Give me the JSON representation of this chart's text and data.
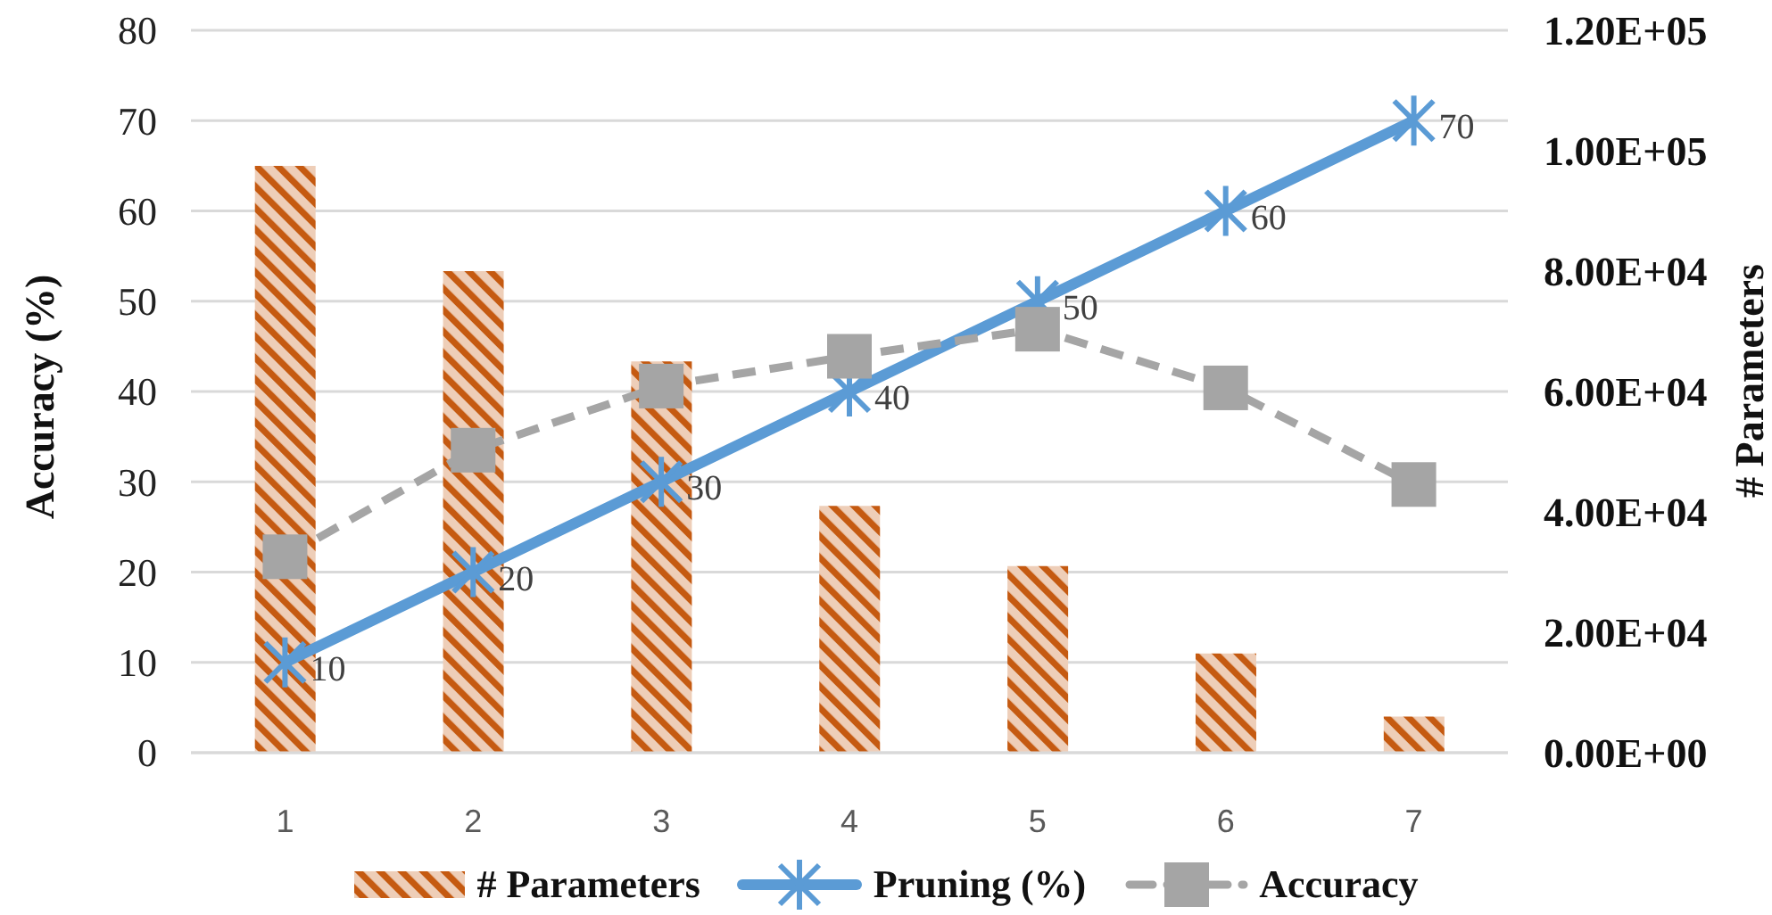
{
  "chart_data": {
    "type": "bar",
    "categories": [
      "1",
      "2",
      "3",
      "4",
      "5",
      "6",
      "7"
    ],
    "ylabel": "Accuracy (%)",
    "y2label": "# Parameters",
    "ylim": [
      0,
      80
    ],
    "yticks": [
      0,
      10,
      20,
      30,
      40,
      50,
      60,
      70,
      80
    ],
    "y2lim": [
      0,
      120000
    ],
    "y2ticks": [
      {
        "value": 0,
        "label": "0.00E+00"
      },
      {
        "value": 20000,
        "label": "2.00E+04"
      },
      {
        "value": 40000,
        "label": "4.00E+04"
      },
      {
        "value": 60000,
        "label": "6.00E+04"
      },
      {
        "value": 80000,
        "label": "8.00E+04"
      },
      {
        "value": 100000,
        "label": "1.00E+05"
      },
      {
        "value": 120000,
        "label": "1.20E+05"
      }
    ],
    "grid": "y",
    "legend": "bottom",
    "series": [
      {
        "name": "# Parameters",
        "axis": "y2",
        "color": "#c55a11",
        "values": [
          97500,
          80000,
          65000,
          41000,
          31000,
          16500,
          6000
        ]
      },
      {
        "name": "Pruning (%)",
        "type": "line",
        "color": "#5b9bd5",
        "marker": "cross",
        "line_style": "solid",
        "values": [
          10,
          20,
          30,
          40,
          50,
          60,
          70
        ],
        "value_labels": [
          "10",
          "20",
          "30",
          "40",
          "50",
          "60",
          "70"
        ]
      },
      {
        "name": "Accuracy",
        "type": "line",
        "color": "#a5a5a5",
        "marker": "square",
        "line_style": "dashed",
        "values": [
          21.7,
          33.5,
          40.6,
          43.9,
          46.9,
          40.4,
          29.7
        ]
      }
    ]
  }
}
